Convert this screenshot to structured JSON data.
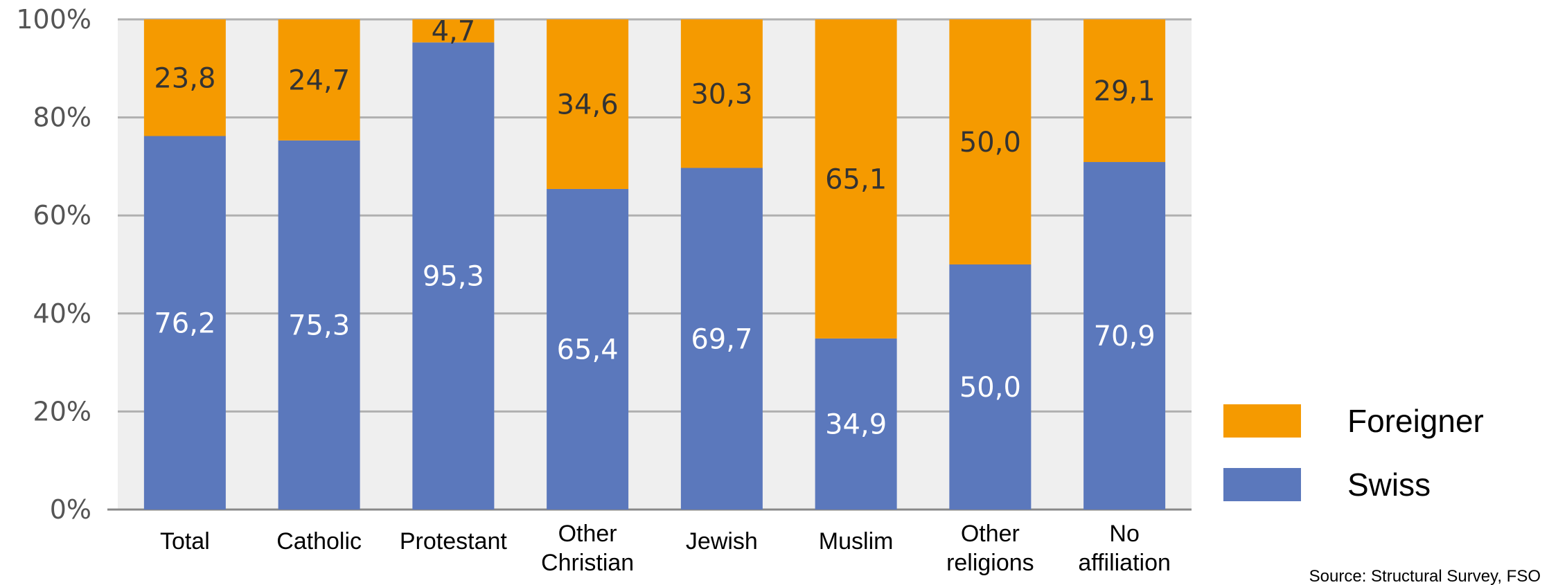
{
  "chart_data": {
    "type": "bar",
    "stacked": true,
    "percent_stacked": true,
    "categories": [
      "Total",
      "Catholic",
      "Protestant",
      "Other Christian",
      "Jewish",
      "Muslim",
      "Other religions",
      "No affiliation"
    ],
    "category_lines": [
      [
        "Total"
      ],
      [
        "Catholic"
      ],
      [
        "Protestant"
      ],
      [
        "Other",
        "Christian"
      ],
      [
        "Jewish"
      ],
      [
        "Muslim"
      ],
      [
        "Other",
        "religions"
      ],
      [
        "No",
        "affiliation"
      ]
    ],
    "series": [
      {
        "name": "Swiss",
        "color": "#5b78bc",
        "label_color": "#ffffff",
        "values": [
          76.2,
          75.3,
          95.3,
          65.4,
          69.7,
          34.9,
          50.0,
          70.9
        ],
        "labels": [
          "76,2",
          "75,3",
          "95,3",
          "65,4",
          "69,7",
          "34,9",
          "50,0",
          "70,9"
        ]
      },
      {
        "name": "Foreigner",
        "color": "#f59a00",
        "label_color": "#333333",
        "values": [
          23.8,
          24.7,
          4.7,
          34.6,
          30.3,
          65.1,
          50.0,
          29.1
        ],
        "labels": [
          "23,8",
          "24,7",
          "4,7",
          "34,6",
          "30,3",
          "65,1",
          "50,0",
          "29,1"
        ]
      }
    ],
    "ylim": [
      0,
      100
    ],
    "yticks": [
      0,
      20,
      40,
      60,
      80,
      100
    ],
    "ytick_labels": [
      "0%",
      "20%",
      "40%",
      "60%",
      "80%",
      "100%"
    ],
    "grid": true,
    "legend_placement": "right",
    "legend_order": [
      "Foreigner",
      "Swiss"
    ],
    "source": "Source: Structural Survey, FSO"
  },
  "colors": {
    "plot_background": "#efefef",
    "grid": "#b0b0b0",
    "axis": "#888888"
  }
}
